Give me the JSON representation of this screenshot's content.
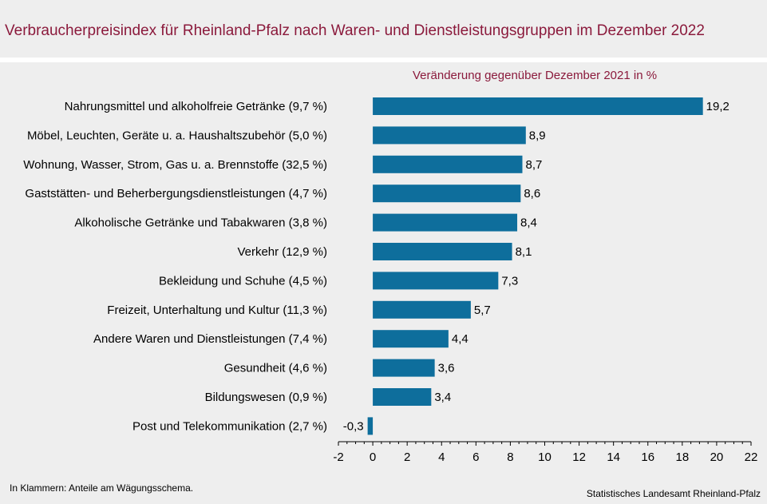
{
  "header": {
    "title": "Verbraucherpreisindex für Rheinland-Pfalz nach Waren- und Dienstleistungsgruppen im Dezember 2022"
  },
  "footer": {
    "note": "In Klammern: Anteile am Wägungsschema.",
    "source": "Statistisches Landesamt Rheinland-Pfalz"
  },
  "colors": {
    "bar": "#0e6e9c",
    "title": "#8b1a3c"
  },
  "chart_data": {
    "type": "bar",
    "orientation": "horizontal",
    "subtitle": "Veränderung gegenüber Dezember 2021 in %",
    "categories": [
      "Nahrungsmittel und alkoholfreie Getränke (9,7 %)",
      "Möbel, Leuchten, Geräte u. a. Haushaltszubehör (5,0 %)",
      "Wohnung, Wasser, Strom, Gas u. a. Brennstoffe (32,5 %)",
      "Gaststätten- und Beherbergungsdienstleistungen (4,7 %)",
      "Alkoholische Getränke und Tabakwaren (3,8 %)",
      "Verkehr (12,9 %)",
      "Bekleidung und Schuhe (4,5 %)",
      "Freizeit, Unterhaltung und Kultur (11,3 %)",
      "Andere Waren und Dienstleistungen (7,4 %)",
      "Gesundheit (4,6 %)",
      "Bildungswesen (0,9 %)",
      "Post und Telekommunikation (2,7 %)"
    ],
    "values": [
      19.2,
      8.9,
      8.7,
      8.6,
      8.4,
      8.1,
      7.3,
      5.7,
      4.4,
      3.6,
      3.4,
      -0.3
    ],
    "value_labels": [
      "19,2",
      "8,9",
      "8,7",
      "8,6",
      "8,4",
      "8,1",
      "7,3",
      "5,7",
      "4,4",
      "3,6",
      "3,4",
      "-0,3"
    ],
    "xlim": [
      -2,
      22
    ],
    "xticks": [
      -2,
      0,
      2,
      4,
      6,
      8,
      10,
      12,
      14,
      16,
      18,
      20,
      22
    ],
    "xtick_labels": [
      "-2",
      "0",
      "2",
      "4",
      "6",
      "8",
      "10",
      "12",
      "14",
      "16",
      "18",
      "20",
      "22"
    ],
    "grid": false,
    "legend": "none"
  }
}
